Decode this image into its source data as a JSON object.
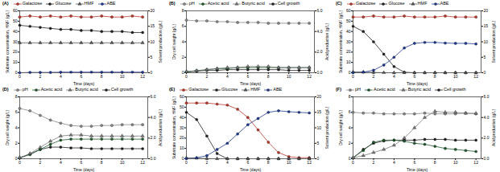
{
  "chart_data": [
    {
      "type": "line",
      "title": "(A)",
      "x_label": "Time (days)",
      "y_label": "Substrate concentration, HMF (g/L)",
      "y2_label": "Solvent production (g/L)",
      "x": [
        0,
        1,
        2,
        3,
        4,
        5,
        6,
        7,
        8,
        9,
        10,
        11,
        12
      ],
      "xlim": [
        0,
        12.5
      ],
      "xticks": [
        0,
        2,
        4,
        6,
        8,
        10,
        12
      ],
      "ylim": [
        0,
        60
      ],
      "yticks": [
        0,
        10,
        20,
        30,
        40,
        50,
        60
      ],
      "y2lim": [
        0,
        20
      ],
      "y2ticks": [
        0,
        5,
        10,
        15,
        20
      ],
      "series": [
        {
          "name": "Galactose",
          "color": "#c0392b",
          "marker": "circle",
          "line_style": "solid",
          "values": [
            54,
            55,
            54,
            55,
            54,
            55,
            54,
            54,
            55,
            54,
            54,
            55,
            54
          ]
        },
        {
          "name": "Glucose",
          "color": "#222222",
          "marker": "circle",
          "line_style": "solid",
          "values": [
            46,
            45,
            44,
            43,
            42,
            42,
            41,
            41,
            40,
            40,
            40,
            39,
            39
          ]
        },
        {
          "name": "HMF",
          "color": "#555555",
          "marker": "triangle",
          "line_style": "solid",
          "values": [
            29,
            29,
            29,
            29,
            29,
            29,
            29,
            29,
            29,
            29,
            29,
            29,
            29
          ]
        },
        {
          "name": "ABE",
          "color": "#1f3a93",
          "marker": "circle",
          "line_style": "solid",
          "axis": "y2",
          "values": [
            0,
            0.1,
            0.1,
            0.1,
            0.2,
            0.2,
            0.2,
            0.2,
            0.2,
            0.2,
            0.2,
            0.2,
            0.2
          ]
        }
      ]
    },
    {
      "type": "line",
      "title": "(B)",
      "x_label": "Time (days)",
      "y_label": "Dry cell weight (g/L)",
      "y2_label": "Acid production (g/L)",
      "x": [
        0,
        1,
        2,
        3,
        4,
        5,
        6,
        7,
        8,
        9,
        10,
        11,
        12
      ],
      "xlim": [
        0,
        12.5
      ],
      "xticks": [
        0,
        2,
        4,
        6,
        8,
        10,
        12
      ],
      "ylim": [
        0,
        8
      ],
      "yticks": [
        0,
        2,
        4,
        6,
        8
      ],
      "y2lim": [
        0,
        6
      ],
      "y2ticks": [
        0,
        2,
        4,
        6
      ],
      "series": [
        {
          "name": "pH",
          "color": "#888888",
          "marker": "circle",
          "line_style": "solid",
          "values": [
            6.8,
            6.7,
            6.7,
            6.6,
            6.6,
            6.5,
            6.5,
            6.5,
            6.4,
            6.4,
            6.4,
            6.4,
            6.4
          ]
        },
        {
          "name": "Acetic acid",
          "color": "#1e5b2e",
          "marker": "circle",
          "line_style": "solid",
          "axis": "y2",
          "values": [
            0.1,
            0.2,
            0.3,
            0.4,
            0.4,
            0.5,
            0.5,
            0.5,
            0.5,
            0.5,
            0.5,
            0.5,
            0.5
          ]
        },
        {
          "name": "Butyric acid",
          "color": "#7a7a7a",
          "marker": "triangle",
          "line_style": "solid",
          "axis": "y2",
          "values": [
            0.1,
            0.2,
            0.3,
            0.4,
            0.5,
            0.5,
            0.6,
            0.6,
            0.6,
            0.5,
            0.5,
            0.5,
            0.5
          ]
        },
        {
          "name": "Cell growth",
          "color": "#222222",
          "marker": "circle",
          "line_style": "solid",
          "values": [
            0.1,
            0.2,
            0.3,
            0.3,
            0.4,
            0.4,
            0.4,
            0.4,
            0.4,
            0.4,
            0.3,
            0.3,
            0.3
          ]
        }
      ]
    },
    {
      "type": "line",
      "title": "(C)",
      "x_label": "Time (days)",
      "y_label": "Substrate concentration, HMF (g/L)",
      "y2_label": "Solvent production (g/L)",
      "x": [
        0,
        1,
        2,
        3,
        4,
        5,
        6,
        7,
        8,
        9,
        10,
        11,
        12
      ],
      "xlim": [
        0,
        12.5
      ],
      "xticks": [
        0,
        2,
        4,
        6,
        8,
        10,
        12
      ],
      "ylim": [
        0,
        60
      ],
      "yticks": [
        0,
        10,
        20,
        30,
        40,
        50,
        60
      ],
      "y2lim": [
        0,
        20
      ],
      "y2ticks": [
        0,
        5,
        10,
        15,
        20
      ],
      "series": [
        {
          "name": "Galactose",
          "color": "#c0392b",
          "marker": "circle",
          "line_style": "solid",
          "values": [
            54,
            54,
            55,
            54,
            54,
            55,
            54,
            54,
            54,
            55,
            54,
            54,
            54
          ]
        },
        {
          "name": "Glucose",
          "color": "#222222",
          "marker": "circle",
          "line_style": "solid",
          "values": [
            45,
            40,
            30,
            18,
            6,
            0.5,
            0,
            0,
            0,
            0,
            0,
            0,
            0
          ]
        },
        {
          "name": "HMF",
          "color": "#555555",
          "marker": "triangle",
          "line_style": "solid",
          "values": [
            0.8,
            0.6,
            0.3,
            0.1,
            0,
            0,
            0,
            0,
            0,
            0,
            0,
            0,
            0
          ]
        },
        {
          "name": "ABE",
          "color": "#1f3a93",
          "marker": "circle",
          "line_style": "solid",
          "axis": "y2",
          "values": [
            0,
            0.2,
            0.8,
            2.5,
            5,
            8,
            9.5,
            9.8,
            9.8,
            9.6,
            9.5,
            9.5,
            9.3
          ]
        }
      ]
    },
    {
      "type": "line",
      "title": "(D)",
      "x_label": "Time (days)",
      "y_label": "Dry cell weight (g/L)",
      "y2_label": "Acid production (g/L)",
      "x": [
        0,
        1,
        2,
        3,
        4,
        5,
        6,
        7,
        8,
        9,
        10,
        11,
        12
      ],
      "xlim": [
        0,
        12.5
      ],
      "xticks": [
        0,
        2,
        4,
        6,
        8,
        10,
        12
      ],
      "ylim": [
        0,
        8
      ],
      "yticks": [
        0,
        2,
        4,
        6,
        8
      ],
      "y2lim": [
        0,
        6
      ],
      "y2ticks": [
        0,
        2,
        4,
        6
      ],
      "series": [
        {
          "name": "pH",
          "color": "#888888",
          "marker": "circle",
          "line_style": "solid",
          "values": [
            6.5,
            6.2,
            5.6,
            5.0,
            4.6,
            4.3,
            4.2,
            4.2,
            4.3,
            4.3,
            4.4,
            4.4,
            4.4
          ]
        },
        {
          "name": "Acetic acid",
          "color": "#1e5b2e",
          "marker": "circle",
          "line_style": "solid",
          "axis": "y2",
          "values": [
            0.1,
            0.4,
            0.9,
            1.4,
            1.8,
            1.9,
            1.9,
            1.9,
            1.9,
            1.9,
            1.9,
            1.9,
            1.9
          ]
        },
        {
          "name": "Butyric acid",
          "color": "#7a7a7a",
          "marker": "triangle",
          "line_style": "solid",
          "axis": "y2",
          "values": [
            0.1,
            0.5,
            1.1,
            1.7,
            2.2,
            2.3,
            2.3,
            2.2,
            2.2,
            2.2,
            2.2,
            2.2,
            2.2
          ]
        },
        {
          "name": "Cell growth",
          "color": "#222222",
          "marker": "circle",
          "line_style": "solid",
          "values": [
            0.1,
            0.6,
            1.2,
            1.5,
            1.5,
            1.4,
            1.4,
            1.3,
            1.3,
            1.3,
            1.3,
            1.3,
            1.3
          ]
        }
      ]
    },
    {
      "type": "line",
      "title": "(E)",
      "x_label": "Time (days)",
      "y_label": "Substrate concentration, HMF (g/L)",
      "y2_label": "Solvent production (g/L)",
      "x": [
        0,
        1,
        2,
        3,
        4,
        5,
        6,
        7,
        8,
        9,
        10,
        11,
        12
      ],
      "xlim": [
        0,
        12.5
      ],
      "xticks": [
        0,
        2,
        4,
        6,
        8,
        10,
        12
      ],
      "ylim": [
        0,
        60
      ],
      "yticks": [
        0,
        10,
        20,
        30,
        40,
        50,
        60
      ],
      "y2lim": [
        0,
        20
      ],
      "y2ticks": [
        0,
        5,
        10,
        15,
        20
      ],
      "series": [
        {
          "name": "Galactose",
          "color": "#c0392b",
          "marker": "circle",
          "line_style": "solid",
          "values": [
            54,
            54,
            54,
            53,
            52,
            48,
            40,
            28,
            16,
            6,
            2,
            1,
            1
          ]
        },
        {
          "name": "Glucose",
          "color": "#222222",
          "marker": "circle",
          "line_style": "solid",
          "values": [
            45,
            38,
            22,
            5,
            0,
            0,
            0,
            0,
            0,
            0,
            0,
            0,
            0
          ]
        },
        {
          "name": "HMF",
          "color": "#555555",
          "marker": "triangle",
          "line_style": "solid",
          "values": [
            0.8,
            0.5,
            0.2,
            0,
            0,
            0,
            0,
            0,
            0,
            0,
            0,
            0,
            0
          ]
        },
        {
          "name": "ABE",
          "color": "#1f3a93",
          "marker": "circle",
          "line_style": "solid",
          "axis": "y2",
          "values": [
            0,
            0.3,
            1,
            3,
            5,
            8,
            11,
            13,
            15,
            15.5,
            15.2,
            15,
            14.8
          ]
        }
      ]
    },
    {
      "type": "line",
      "title": "(F)",
      "x_label": "Time (days)",
      "y_label": "Dry cell weight (g/L)",
      "y2_label": "Acid production (g/L)",
      "x": [
        0,
        1,
        2,
        3,
        4,
        5,
        6,
        7,
        8,
        9,
        10,
        11,
        12
      ],
      "xlim": [
        0,
        12.5
      ],
      "xticks": [
        0,
        2,
        4,
        6,
        8,
        10,
        12
      ],
      "ylim": [
        0,
        8
      ],
      "yticks": [
        0,
        2,
        4,
        6,
        8
      ],
      "y2lim": [
        0,
        6
      ],
      "y2ticks": [
        0,
        2,
        4,
        6
      ],
      "series": [
        {
          "name": "pH",
          "color": "#888888",
          "marker": "circle",
          "line_style": "solid",
          "values": [
            6.0,
            5.9,
            5.9,
            5.8,
            5.8,
            5.8,
            5.8,
            5.9,
            5.8,
            5.8,
            5.8,
            5.9,
            5.8
          ]
        },
        {
          "name": "Acetic acid",
          "color": "#1e5b2e",
          "marker": "circle",
          "line_style": "solid",
          "axis": "y2",
          "values": [
            0.1,
            0.8,
            1.6,
            1.8,
            1.8,
            1.7,
            1.5,
            1.4,
            1.2,
            1.0,
            0.9,
            0.8,
            0.7
          ]
        },
        {
          "name": "Butyric acid",
          "color": "#7a7a7a",
          "marker": "triangle",
          "line_style": "solid",
          "axis": "y2",
          "values": [
            0.1,
            0.3,
            0.6,
            0.9,
            1.3,
            2.0,
            3.0,
            4.0,
            4.6,
            4.5,
            4.5,
            4.4,
            4.4
          ]
        },
        {
          "name": "Cell growth",
          "color": "#222222",
          "marker": "circle",
          "line_style": "solid",
          "values": [
            0.1,
            1.2,
            2.0,
            2.3,
            2.4,
            2.4,
            2.4,
            2.5,
            2.5,
            2.5,
            2.4,
            2.4,
            2.4
          ]
        }
      ]
    }
  ]
}
